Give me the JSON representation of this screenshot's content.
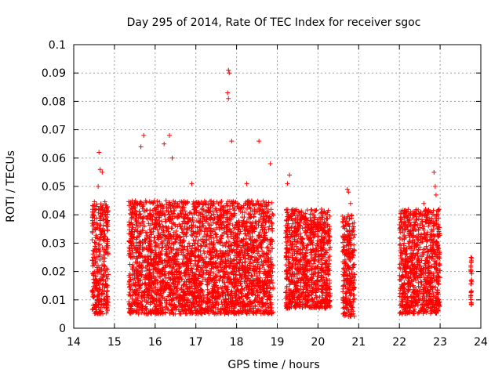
{
  "chart_data": {
    "type": "scatter",
    "title": "Day 295 of 2014, Rate Of TEC Index for receiver sgoc",
    "xlabel": "GPS time / hours",
    "ylabel": "ROTI / TECUs",
    "xlim": [
      14,
      24
    ],
    "ylim": [
      0,
      0.1
    ],
    "xticks": [
      "14",
      "15",
      "16",
      "17",
      "18",
      "19",
      "20",
      "21",
      "22",
      "23",
      "24"
    ],
    "yticks": [
      "0",
      "0.01",
      "0.02",
      "0.03",
      "0.04",
      "0.05",
      "0.06",
      "0.07",
      "0.08",
      "0.09",
      "0.1"
    ],
    "grid": true,
    "marker": "plus",
    "color": "#ff0000",
    "clusters": [
      {
        "x_range": [
          14.45,
          14.85
        ],
        "y_range": [
          0.005,
          0.045
        ],
        "peaks": [
          [
            14.62,
            0.062
          ],
          [
            14.65,
            0.056
          ],
          [
            14.7,
            0.055
          ],
          [
            14.6,
            0.05
          ]
        ]
      },
      {
        "x_range": [
          15.35,
          18.9
        ],
        "y_range": [
          0.005,
          0.045
        ],
        "peaks": [
          [
            15.65,
            0.064
          ],
          [
            15.72,
            0.068
          ],
          [
            16.22,
            0.065
          ],
          [
            16.35,
            0.068
          ],
          [
            16.42,
            0.06
          ],
          [
            17.8,
            0.091
          ],
          [
            17.82,
            0.09
          ],
          [
            17.78,
            0.083
          ],
          [
            17.8,
            0.081
          ],
          [
            17.88,
            0.066
          ],
          [
            18.55,
            0.066
          ],
          [
            18.83,
            0.058
          ],
          [
            16.9,
            0.051
          ],
          [
            18.25,
            0.051
          ]
        ]
      },
      {
        "x_range": [
          19.2,
          20.3
        ],
        "y_range": [
          0.007,
          0.042
        ],
        "peaks": [
          [
            19.3,
            0.054
          ],
          [
            19.25,
            0.051
          ]
        ]
      },
      {
        "x_range": [
          20.6,
          20.9
        ],
        "y_range": [
          0.004,
          0.04
        ],
        "peaks": [
          [
            20.72,
            0.049
          ],
          [
            20.75,
            0.048
          ],
          [
            20.8,
            0.044
          ]
        ]
      },
      {
        "x_range": [
          22.0,
          23.0
        ],
        "y_range": [
          0.005,
          0.042
        ],
        "peaks": [
          [
            22.85,
            0.055
          ],
          [
            22.88,
            0.05
          ],
          [
            22.9,
            0.047
          ],
          [
            22.6,
            0.044
          ]
        ]
      },
      {
        "x_range": [
          23.75,
          23.78
        ],
        "y_range": [
          0.008,
          0.025
        ],
        "peaks": [
          [
            23.76,
            0.025
          ],
          [
            23.77,
            0.024
          ],
          [
            23.75,
            0.011
          ],
          [
            23.76,
            0.009
          ]
        ]
      }
    ]
  }
}
